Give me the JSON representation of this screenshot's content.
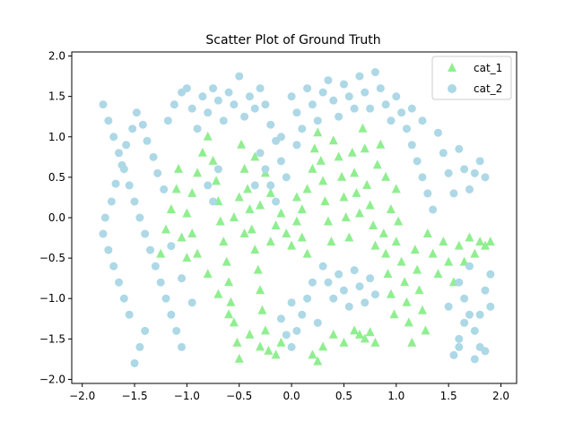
{
  "chart_data": {
    "type": "scatter",
    "title": "Scatter Plot of Ground Truth",
    "xlabel": "",
    "ylabel": "",
    "xlim": [
      -2.1,
      2.15
    ],
    "ylim": [
      -2.05,
      2.05
    ],
    "xticks": [
      -2.0,
      -1.5,
      -1.0,
      -0.5,
      0.0,
      0.5,
      1.0,
      1.5,
      2.0
    ],
    "xtick_labels": [
      "−2.0",
      "−1.5",
      "−1.0",
      "−0.5",
      "0.0",
      "0.5",
      "1.0",
      "1.5",
      "2.0"
    ],
    "yticks": [
      -2.0,
      -1.5,
      -1.0,
      -0.5,
      0.0,
      0.5,
      1.0,
      1.5,
      2.0
    ],
    "ytick_labels": [
      "−2.0",
      "−1.5",
      "−1.0",
      "−0.5",
      "0.0",
      "0.5",
      "1.0",
      "1.5",
      "2.0"
    ],
    "grid": false,
    "legend_position": "top-right",
    "series": [
      {
        "name": "cat_1",
        "marker": "triangle",
        "color": "#90ee90",
        "points": [
          [
            -1.08,
            0.6
          ],
          [
            -1.1,
            0.35
          ],
          [
            -1.15,
            0.1
          ],
          [
            -1.2,
            -0.15
          ],
          [
            -1.25,
            -0.45
          ],
          [
            -1.05,
            -0.25
          ],
          [
            -1.0,
            0.05
          ],
          [
            -0.95,
            0.3
          ],
          [
            -0.9,
            0.55
          ],
          [
            -0.85,
            0.8
          ],
          [
            -0.8,
            1.0
          ],
          [
            -0.75,
            0.7
          ],
          [
            -0.72,
            0.45
          ],
          [
            -0.7,
            0.2
          ],
          [
            -0.68,
            -0.05
          ],
          [
            -0.65,
            -0.3
          ],
          [
            -0.62,
            -0.55
          ],
          [
            -0.6,
            -0.8
          ],
          [
            -0.58,
            -1.05
          ],
          [
            -0.55,
            -1.3
          ],
          [
            -0.52,
            -1.55
          ],
          [
            -0.5,
            -1.75
          ],
          [
            -0.48,
            0.9
          ],
          [
            -0.45,
            0.6
          ],
          [
            -0.42,
            0.35
          ],
          [
            -0.4,
            0.1
          ],
          [
            -0.38,
            -0.15
          ],
          [
            -0.35,
            -0.4
          ],
          [
            -0.32,
            -0.65
          ],
          [
            -0.3,
            -0.9
          ],
          [
            -0.28,
            -1.15
          ],
          [
            -0.25,
            -1.4
          ],
          [
            -0.22,
            -1.65
          ],
          [
            -0.2,
            -0.3
          ],
          [
            -0.15,
            -0.1
          ],
          [
            -0.1,
            0.05
          ],
          [
            -0.05,
            -0.2
          ],
          [
            0.0,
            -0.35
          ],
          [
            0.05,
            -0.05
          ],
          [
            0.1,
            0.1
          ],
          [
            0.15,
            0.35
          ],
          [
            0.2,
            0.6
          ],
          [
            0.22,
            0.85
          ],
          [
            0.25,
            1.05
          ],
          [
            0.28,
            0.7
          ],
          [
            0.3,
            0.45
          ],
          [
            0.32,
            0.2
          ],
          [
            0.35,
            -0.05
          ],
          [
            0.38,
            -0.3
          ],
          [
            0.4,
            0.95
          ],
          [
            0.45,
            0.75
          ],
          [
            0.48,
            0.5
          ],
          [
            0.5,
            0.25
          ],
          [
            0.52,
            0.0
          ],
          [
            0.55,
            -0.25
          ],
          [
            0.58,
            0.8
          ],
          [
            0.6,
            0.55
          ],
          [
            0.62,
            0.3
          ],
          [
            0.65,
            0.05
          ],
          [
            0.68,
            1.1
          ],
          [
            0.7,
            0.85
          ],
          [
            0.72,
            0.4
          ],
          [
            0.75,
            0.15
          ],
          [
            0.78,
            -0.1
          ],
          [
            0.8,
            -0.35
          ],
          [
            0.82,
            0.65
          ],
          [
            0.85,
            0.9
          ],
          [
            0.88,
            -0.2
          ],
          [
            0.9,
            -0.45
          ],
          [
            0.92,
            -0.7
          ],
          [
            0.95,
            -0.95
          ],
          [
            0.98,
            -1.2
          ],
          [
            1.0,
            -0.3
          ],
          [
            1.02,
            -0.05
          ],
          [
            1.05,
            -0.55
          ],
          [
            1.08,
            -0.8
          ],
          [
            1.1,
            -1.05
          ],
          [
            1.12,
            -1.3
          ],
          [
            1.15,
            -1.55
          ],
          [
            1.18,
            -0.4
          ],
          [
            1.2,
            -0.65
          ],
          [
            1.22,
            -0.9
          ],
          [
            1.25,
            -1.15
          ],
          [
            1.28,
            -1.4
          ],
          [
            1.3,
            -0.2
          ],
          [
            1.35,
            -0.45
          ],
          [
            1.4,
            -0.7
          ],
          [
            1.45,
            -0.3
          ],
          [
            1.5,
            -0.55
          ],
          [
            1.55,
            -0.8
          ],
          [
            0.6,
            -1.4
          ],
          [
            0.65,
            -1.45
          ],
          [
            0.7,
            -1.5
          ],
          [
            0.75,
            -1.42
          ],
          [
            0.8,
            -1.55
          ],
          [
            0.5,
            -1.55
          ],
          [
            0.4,
            -1.45
          ],
          [
            0.3,
            -1.6
          ],
          [
            0.2,
            -1.7
          ],
          [
            0.25,
            -1.78
          ],
          [
            -0.1,
            -1.55
          ],
          [
            -0.15,
            -1.7
          ],
          [
            -0.3,
            -1.6
          ],
          [
            -0.4,
            -1.45
          ],
          [
            -0.6,
            -1.2
          ],
          [
            -0.7,
            -0.95
          ],
          [
            -0.8,
            -0.7
          ],
          [
            -0.9,
            -0.45
          ],
          [
            -0.95,
            -0.2
          ],
          [
            -1.0,
            -0.5
          ],
          [
            -0.2,
            0.3
          ],
          [
            -0.25,
            0.55
          ],
          [
            -0.3,
            0.15
          ],
          [
            -0.55,
            0.0
          ],
          [
            -0.5,
            0.25
          ],
          [
            -0.45,
            -0.2
          ],
          [
            -0.35,
            0.75
          ],
          [
            0.05,
            0.25
          ],
          [
            0.1,
            -0.25
          ],
          [
            0.15,
            -0.45
          ],
          [
            1.6,
            -0.35
          ],
          [
            1.7,
            -0.25
          ],
          [
            1.8,
            -0.3
          ],
          [
            1.85,
            -0.35
          ],
          [
            1.65,
            -0.55
          ],
          [
            1.75,
            -0.45
          ],
          [
            1.9,
            -0.3
          ],
          [
            0.95,
            0.1
          ],
          [
            1.0,
            0.35
          ],
          [
            0.9,
            0.5
          ]
        ]
      },
      {
        "name": "cat_2",
        "marker": "circle",
        "color": "#add8e6",
        "points": [
          [
            -1.8,
            1.4
          ],
          [
            -1.75,
            1.2
          ],
          [
            -1.7,
            1.0
          ],
          [
            -1.65,
            0.8
          ],
          [
            -1.6,
            0.6
          ],
          [
            -1.55,
            0.4
          ],
          [
            -1.5,
            0.2
          ],
          [
            -1.45,
            0.0
          ],
          [
            -1.4,
            -0.2
          ],
          [
            -1.35,
            -0.4
          ],
          [
            -1.3,
            -0.6
          ],
          [
            -1.25,
            -0.8
          ],
          [
            -1.2,
            -1.0
          ],
          [
            -1.15,
            -1.2
          ],
          [
            -1.1,
            -1.4
          ],
          [
            -1.05,
            -1.6
          ],
          [
            -1.5,
            -1.8
          ],
          [
            -1.45,
            -1.6
          ],
          [
            -1.4,
            -1.4
          ],
          [
            -1.55,
            -1.2
          ],
          [
            -1.6,
            -1.0
          ],
          [
            -1.65,
            -0.8
          ],
          [
            -1.7,
            -0.6
          ],
          [
            -1.75,
            -0.4
          ],
          [
            -1.8,
            -0.2
          ],
          [
            -1.78,
            0.0
          ],
          [
            -1.72,
            0.2
          ],
          [
            -1.68,
            0.42
          ],
          [
            -1.62,
            0.65
          ],
          [
            -1.58,
            0.9
          ],
          [
            -1.52,
            1.1
          ],
          [
            -1.48,
            1.3
          ],
          [
            -1.42,
            1.15
          ],
          [
            -1.38,
            0.95
          ],
          [
            -1.32,
            0.75
          ],
          [
            -1.28,
            0.55
          ],
          [
            -1.22,
            0.35
          ],
          [
            -1.18,
            1.2
          ],
          [
            -1.12,
            1.4
          ],
          [
            -1.05,
            1.55
          ],
          [
            -1.0,
            1.6
          ],
          [
            -0.95,
            1.35
          ],
          [
            -0.9,
            1.1
          ],
          [
            -0.85,
            1.5
          ],
          [
            -0.8,
            1.3
          ],
          [
            -0.75,
            1.6
          ],
          [
            -0.7,
            1.45
          ],
          [
            -0.65,
            1.2
          ],
          [
            -0.6,
            1.55
          ],
          [
            -0.55,
            1.4
          ],
          [
            -0.5,
            1.75
          ],
          [
            -0.45,
            1.25
          ],
          [
            -0.4,
            1.5
          ],
          [
            -0.35,
            1.35
          ],
          [
            -0.3,
            1.6
          ],
          [
            -0.25,
            1.4
          ],
          [
            -0.2,
            1.15
          ],
          [
            -0.15,
            0.95
          ],
          [
            -0.1,
            0.7
          ],
          [
            -0.05,
            0.5
          ],
          [
            0.0,
            1.5
          ],
          [
            0.05,
            1.3
          ],
          [
            0.1,
            1.1
          ],
          [
            0.15,
            1.6
          ],
          [
            0.2,
            1.4
          ],
          [
            0.25,
            1.2
          ],
          [
            0.3,
            1.55
          ],
          [
            0.35,
            1.7
          ],
          [
            0.4,
            1.45
          ],
          [
            0.45,
            1.25
          ],
          [
            0.5,
            1.65
          ],
          [
            0.55,
            1.5
          ],
          [
            0.6,
            1.35
          ],
          [
            0.65,
            1.75
          ],
          [
            0.7,
            1.55
          ],
          [
            0.75,
            1.35
          ],
          [
            0.8,
            1.8
          ],
          [
            0.85,
            1.6
          ],
          [
            0.9,
            1.4
          ],
          [
            0.95,
            1.2
          ],
          [
            1.0,
            1.5
          ],
          [
            1.05,
            1.3
          ],
          [
            1.1,
            1.1
          ],
          [
            1.15,
            0.9
          ],
          [
            1.2,
            0.7
          ],
          [
            1.25,
            0.5
          ],
          [
            1.3,
            0.3
          ],
          [
            1.35,
            0.1
          ],
          [
            1.4,
            1.05
          ],
          [
            1.45,
            0.8
          ],
          [
            1.5,
            0.55
          ],
          [
            1.6,
            0.85
          ],
          [
            1.65,
            0.6
          ],
          [
            1.7,
            0.35
          ],
          [
            1.75,
            0.55
          ],
          [
            1.8,
            0.7
          ],
          [
            1.85,
            0.5
          ],
          [
            1.55,
            0.3
          ],
          [
            1.15,
            1.35
          ],
          [
            1.25,
            1.2
          ],
          [
            -0.8,
            0.4
          ],
          [
            -0.75,
            0.2
          ],
          [
            -0.7,
            0.6
          ],
          [
            -0.2,
            0.4
          ],
          [
            -0.15,
            0.2
          ],
          [
            -0.25,
            0.6
          ],
          [
            -0.3,
            0.8
          ],
          [
            -0.35,
            0.4
          ],
          [
            -0.1,
            1.0
          ],
          [
            0.05,
            0.9
          ],
          [
            0.3,
            -0.6
          ],
          [
            0.35,
            -0.8
          ],
          [
            0.4,
            -1.0
          ],
          [
            0.45,
            -0.7
          ],
          [
            0.5,
            -0.9
          ],
          [
            0.55,
            -1.1
          ],
          [
            0.6,
            -0.65
          ],
          [
            0.65,
            -0.85
          ],
          [
            0.7,
            -1.05
          ],
          [
            0.75,
            -0.75
          ],
          [
            0.8,
            -0.95
          ],
          [
            0.2,
            -0.8
          ],
          [
            0.15,
            -1.0
          ],
          [
            0.1,
            -1.2
          ],
          [
            0.05,
            -1.4
          ],
          [
            0.0,
            -1.6
          ],
          [
            -0.05,
            -1.45
          ],
          [
            -0.1,
            -1.25
          ],
          [
            0.0,
            -1.05
          ],
          [
            0.25,
            -1.3
          ],
          [
            1.6,
            -0.8
          ],
          [
            1.65,
            -1.0
          ],
          [
            1.7,
            -1.2
          ],
          [
            1.75,
            -1.4
          ],
          [
            1.8,
            -1.6
          ],
          [
            1.85,
            -0.9
          ],
          [
            1.9,
            -1.1
          ],
          [
            1.7,
            -0.6
          ],
          [
            1.6,
            -1.5
          ],
          [
            1.55,
            -1.7
          ],
          [
            1.75,
            -1.75
          ],
          [
            1.85,
            -1.65
          ],
          [
            1.65,
            -1.3
          ],
          [
            1.8,
            -1.2
          ],
          [
            1.9,
            -0.7
          ],
          [
            1.5,
            -1.1
          ],
          [
            1.6,
            -1.6
          ],
          [
            -1.15,
            -0.35
          ],
          [
            -1.05,
            -0.75
          ],
          [
            -0.95,
            -1.05
          ]
        ]
      }
    ]
  }
}
